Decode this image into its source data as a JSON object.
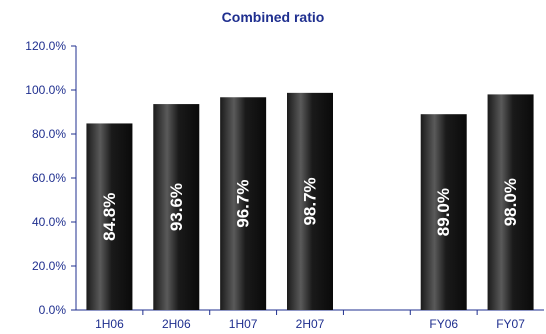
{
  "chart_data": {
    "type": "bar",
    "title": "Combined ratio",
    "categories": [
      "1H06",
      "2H06",
      "1H07",
      "2H07",
      "",
      "FY06",
      "FY07"
    ],
    "values": [
      84.8,
      93.6,
      96.7,
      98.7,
      null,
      89.0,
      98.0
    ],
    "data_labels": [
      "84.8%",
      "93.6%",
      "96.7%",
      "98.7%",
      "",
      "89.0%",
      "98.0%"
    ],
    "y_ticks": [
      "0.0%",
      "20.0%",
      "40.0%",
      "60.0%",
      "80.0%",
      "100.0%",
      "120.0%"
    ],
    "y_tick_values": [
      0,
      20,
      40,
      60,
      80,
      100,
      120
    ],
    "ylim": [
      0,
      120
    ],
    "xlabel": "",
    "ylabel": "",
    "grid": false,
    "legend": "none",
    "colors": {
      "bar": "#1a1a1a",
      "bar_highlight": "#5a5a5a",
      "axis": "#1f2f8f",
      "label_text": "#ffffff",
      "tick_text": "#1f2f8f"
    }
  }
}
